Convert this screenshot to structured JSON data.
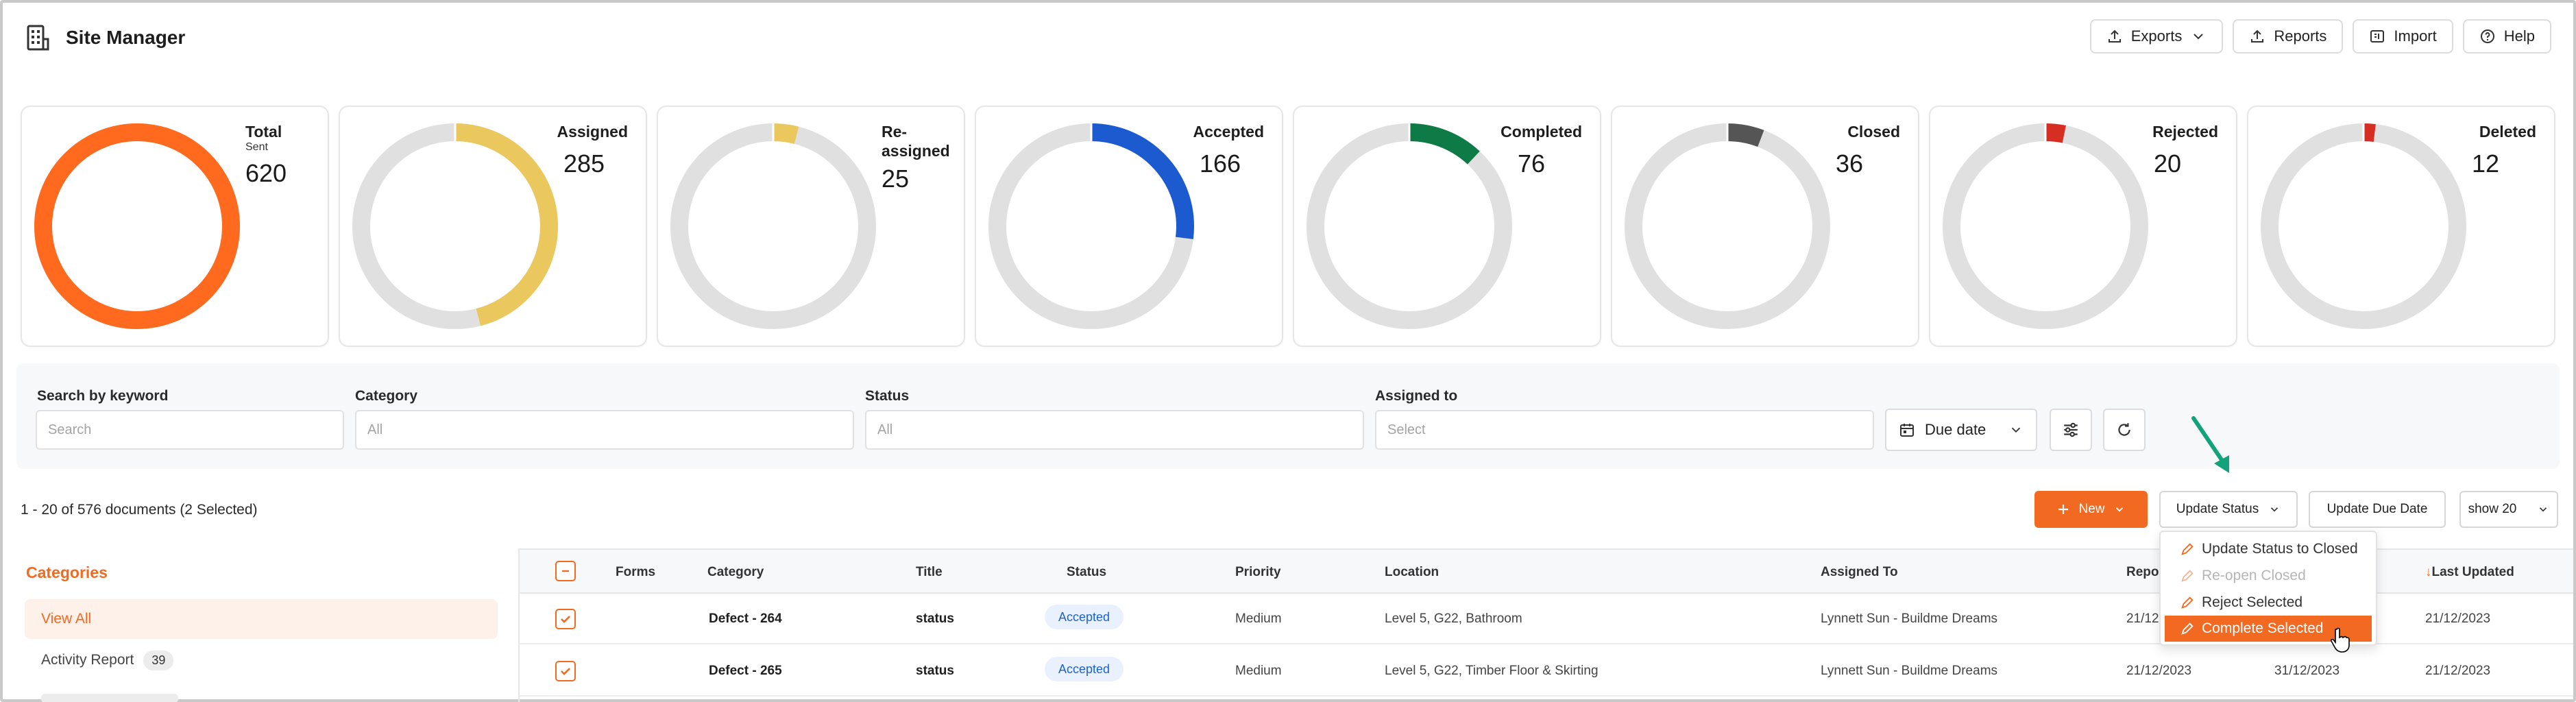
{
  "app": {
    "title": "Site Manager"
  },
  "header_actions": [
    {
      "label": "Exports",
      "icon": "upload-icon"
    },
    {
      "label": "Reports",
      "icon": "upload-icon"
    },
    {
      "label": "Import",
      "icon": "import-icon"
    },
    {
      "label": "Help",
      "icon": "help-icon"
    }
  ],
  "colors": {
    "accent": "#F26A22",
    "track": "#E0E0E0",
    "total": "#FF6A1F",
    "assigned": "#EBC85E",
    "reassigned": "#EBC85E",
    "accepted": "#1B5ACF",
    "completed": "#0E7A46",
    "closed": "#555555",
    "rejected": "#D62E23",
    "deleted": "#D62E23"
  },
  "stats": [
    {
      "label": "Total",
      "sub": "Sent",
      "value": "620",
      "fraction": 1.0,
      "color": "#FF6A1F"
    },
    {
      "label": "Assigned",
      "value": "285",
      "fraction": 0.46,
      "color": "#EBC85E"
    },
    {
      "label": "Re-assigned",
      "value": "25",
      "fraction": 0.04,
      "color": "#EBC85E"
    },
    {
      "label": "Accepted",
      "value": "166",
      "fraction": 0.27,
      "color": "#1B5ACF"
    },
    {
      "label": "Completed",
      "value": "76",
      "fraction": 0.12,
      "color": "#0E7A46"
    },
    {
      "label": "Closed",
      "value": "36",
      "fraction": 0.058,
      "color": "#555555"
    },
    {
      "label": "Rejected",
      "value": "20",
      "fraction": 0.032,
      "color": "#D62E23"
    },
    {
      "label": "Deleted",
      "value": "12",
      "fraction": 0.019,
      "color": "#D62E23"
    }
  ],
  "filters": {
    "keyword": {
      "label": "Search by keyword",
      "placeholder": "Search"
    },
    "category": {
      "label": "Category",
      "placeholder": "All"
    },
    "status": {
      "label": "Status",
      "placeholder": "All"
    },
    "assigned": {
      "label": "Assigned to",
      "placeholder": "Select"
    },
    "due_date": "Due date"
  },
  "results": {
    "summary": "1 - 20 of 576 documents (2 Selected)"
  },
  "toolbar": {
    "new": "New",
    "update_status": "Update Status",
    "update_due": "Update Due Date",
    "show": "show 20"
  },
  "dropdown": [
    {
      "label": "Update Status to Closed",
      "state": "normal"
    },
    {
      "label": "Re-open Closed",
      "state": "disabled"
    },
    {
      "label": "Reject Selected",
      "state": "normal"
    },
    {
      "label": "Complete Selected",
      "state": "highlighted"
    }
  ],
  "categories": {
    "title": "Categories",
    "items": [
      {
        "label": "View All",
        "active": true
      },
      {
        "label": "Activity Report",
        "count": "39"
      }
    ]
  },
  "table": {
    "columns": [
      "Forms",
      "Category",
      "Title",
      "Status",
      "Priority",
      "Location",
      "Assigned To",
      "Repor",
      "Last Updated"
    ],
    "rows": [
      {
        "category": "Defect - 264",
        "title": "status",
        "status": "Accepted",
        "priority": "Medium",
        "location": "Level 5, G22, Bathroom",
        "assigned": "Lynnett Sun - Buildme Dreams",
        "reported": "21/12",
        "due": "",
        "updated": "21/12/2023"
      },
      {
        "category": "Defect - 265",
        "title": "status",
        "status": "Accepted",
        "priority": "Medium",
        "location": "Level 5, G22, Timber Floor & Skirting",
        "assigned": "Lynnett Sun - Buildme Dreams",
        "reported": "21/12/2023",
        "due": "31/12/2023",
        "updated": "21/12/2023"
      }
    ]
  }
}
